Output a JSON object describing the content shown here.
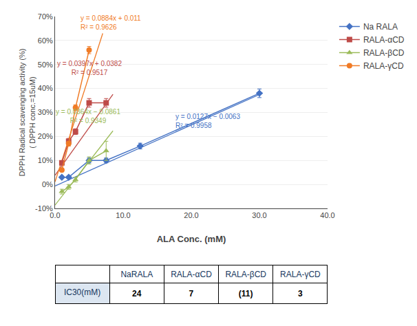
{
  "chart_data": {
    "type": "line",
    "x_label": "ALA Conc. (mM)",
    "y_label": "DPPH Radical scavenging activity (%)\n( DPPH conc.=15uM)",
    "xlim": [
      0,
      40.0
    ],
    "ylim": [
      -0.1,
      0.7
    ],
    "xticks": [
      {
        "value": 0.0,
        "label": "0.0"
      },
      {
        "value": 10.0,
        "label": "10.0"
      },
      {
        "value": 20.0,
        "label": "20.0"
      },
      {
        "value": 30.0,
        "label": "30.0"
      },
      {
        "value": 40.0,
        "label": "40.0"
      }
    ],
    "yticks": [
      {
        "value": -0.1,
        "label": "-10%"
      },
      {
        "value": 0.0,
        "label": "0%"
      },
      {
        "value": 0.1,
        "label": "10%"
      },
      {
        "value": 0.2,
        "label": "20%"
      },
      {
        "value": 0.3,
        "label": "30%"
      },
      {
        "value": 0.4,
        "label": "40%"
      },
      {
        "value": 0.5,
        "label": "50%"
      },
      {
        "value": 0.6,
        "label": "60%"
      },
      {
        "value": 0.7,
        "label": "70%"
      }
    ],
    "grid": "y",
    "legend": "right",
    "series": [
      {
        "name": "Na RALA",
        "color": "#4472C4",
        "marker": "diamond",
        "x": [
          1,
          2,
          5,
          7.5,
          12.5,
          30.0
        ],
        "values": [
          0.03,
          0.03,
          0.1,
          0.1,
          0.16,
          0.38
        ],
        "errors": [
          0.005,
          0.005,
          0.01,
          0.01,
          0.012,
          0.018
        ],
        "fit": {
          "x": [
            0.0,
            30.5
          ],
          "values": [
            -0.0063,
            0.38105
          ]
        }
      },
      {
        "name": "RALA-αCD",
        "color": "#BE4B48",
        "marker": "square",
        "x": [
          1,
          2,
          3,
          5,
          7.5
        ],
        "values": [
          0.09,
          0.18,
          0.22,
          0.34,
          0.34
        ],
        "errors": [
          0.008,
          0.012,
          0.012,
          0.018,
          0.018
        ],
        "fit": {
          "x": [
            0.0,
            8.5
          ],
          "values": [
            0.0382,
            0.37565
          ]
        }
      },
      {
        "name": "RALA-βCD",
        "color": "#9BBB59",
        "marker": "triangle-up",
        "x": [
          1,
          2,
          3,
          5,
          7.5
        ],
        "values": [
          -0.03,
          -0.01,
          0.02,
          0.1,
          0.14
        ],
        "errors": [
          0.01,
          0.01,
          0.01,
          0.015,
          0.04
        ],
        "fit": {
          "x": [
            0.0,
            8.5
          ],
          "values": [
            -0.0861,
            0.2233
          ]
        }
      },
      {
        "name": "RALA-γCD",
        "color": "#F07B26",
        "marker": "circle",
        "x": [
          1,
          2,
          3,
          5
        ],
        "values": [
          0.06,
          0.17,
          0.32,
          0.56
        ],
        "errors": [
          0.005,
          0.01,
          0.012,
          0.015
        ],
        "fit": {
          "x": [
            0.0,
            7.0
          ],
          "values": [
            0.011,
            0.6298
          ]
        }
      }
    ],
    "annotations": [
      {
        "text": "y = 0.0127x − 0.0063\nR² = 0.9958",
        "x": 17.5,
        "y": 0.225,
        "color": "#4472C4",
        "align": "left"
      },
      {
        "text": "y = 0.0397x + 0.0382\nR² = 0.9517",
        "x": 5.0,
        "y": 0.445,
        "color": "#BE4B48",
        "align": "center"
      },
      {
        "text": "y = 0.0364x − 0.0861\nR² = 0.9349",
        "x": 4.8,
        "y": 0.245,
        "color": "#9BBB59",
        "align": "center"
      },
      {
        "text": "y = 0.0884x + 0.011\nR² = 0.9626",
        "x": 3.5,
        "y": 0.635,
        "color": "#F07B26",
        "align": "left"
      }
    ],
    "table": {
      "headers": [
        "",
        "NaRALA",
        "RALA-αCD",
        "RALA-βCD",
        "RALA-γCD"
      ],
      "rows": [
        [
          "IC30(mM)",
          "24",
          "7",
          "(11)",
          "3"
        ]
      ]
    }
  }
}
